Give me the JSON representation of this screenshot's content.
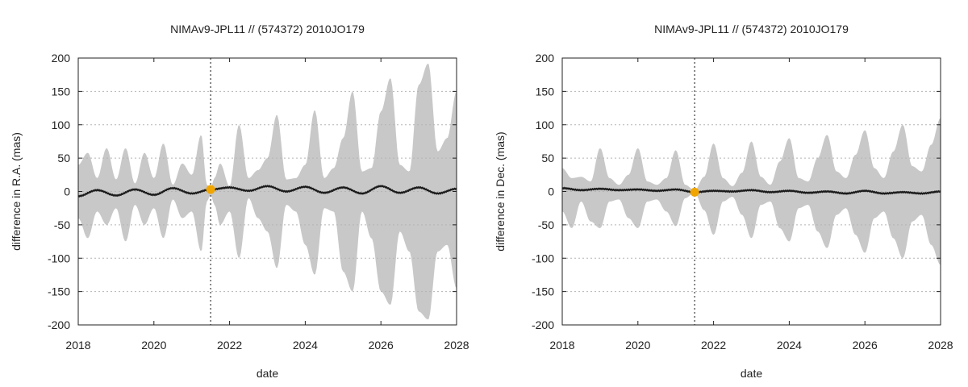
{
  "colors": {
    "band": "#c8c8c8",
    "line": "#1a1a1a",
    "marker": "#f0a500",
    "grid": "#b4b4b4",
    "epoch_line": "#555555"
  },
  "chart_data": [
    {
      "type": "line",
      "title": "NIMAv9-JPL11 // (574372) 2010JO179",
      "xlabel": "date",
      "ylabel": "difference in R.A. (mas)",
      "xlim": [
        2018,
        2028
      ],
      "ylim": [
        -200,
        200
      ],
      "xticks": [
        "2018",
        "2020",
        "2022",
        "2024",
        "2026",
        "2028"
      ],
      "yticks": [
        "200",
        "150",
        "100",
        "50",
        "0",
        "-50",
        "-100",
        "-150",
        "-200"
      ],
      "grid": "horizontal dotted",
      "epoch": 2021.5,
      "epoch_value": 3,
      "band_envelope": {
        "x": [
          2018.0,
          2018.25,
          2018.5,
          2018.75,
          2019.0,
          2019.25,
          2019.5,
          2019.75,
          2020.0,
          2020.25,
          2020.5,
          2020.75,
          2021.0,
          2021.25,
          2021.4,
          2021.5,
          2021.6,
          2021.75,
          2022.0,
          2022.25,
          2022.5,
          2022.75,
          2023.0,
          2023.25,
          2023.5,
          2023.75,
          2024.0,
          2024.25,
          2024.5,
          2024.75,
          2025.0,
          2025.25,
          2025.5,
          2025.75,
          2026.0,
          2026.25,
          2026.5,
          2026.75,
          2027.0,
          2027.25,
          2027.5,
          2027.75,
          2028.0
        ],
        "upper": [
          40,
          58,
          20,
          65,
          18,
          65,
          12,
          58,
          20,
          72,
          10,
          42,
          25,
          85,
          10,
          5,
          20,
          42,
          8,
          100,
          20,
          32,
          50,
          115,
          18,
          20,
          40,
          122,
          20,
          35,
          80,
          150,
          30,
          35,
          120,
          170,
          40,
          30,
          160,
          192,
          60,
          80,
          150
        ],
        "lower": [
          -40,
          -70,
          -30,
          -50,
          -25,
          -75,
          -20,
          -50,
          -25,
          -70,
          -12,
          -40,
          -30,
          -90,
          -15,
          -5,
          -20,
          -50,
          -30,
          -100,
          -10,
          -40,
          -60,
          -115,
          -20,
          -30,
          -80,
          -125,
          -25,
          -30,
          -120,
          -150,
          -30,
          -70,
          -150,
          -170,
          -60,
          -90,
          -180,
          -192,
          -90,
          -80,
          -145
        ]
      },
      "series": [
        {
          "x": [
            2018.0,
            2018.5,
            2019.0,
            2019.5,
            2020.0,
            2020.5,
            2021.0,
            2021.5,
            2022.0,
            2022.5,
            2023.0,
            2023.5,
            2024.0,
            2024.5,
            2025.0,
            2025.5,
            2026.0,
            2026.5,
            2027.0,
            2027.5,
            2028.0
          ],
          "values": [
            -7,
            2,
            -6,
            3,
            -5,
            5,
            -3,
            3,
            6,
            1,
            8,
            0,
            7,
            -2,
            6,
            -3,
            8,
            -2,
            6,
            -3,
            4
          ]
        }
      ]
    },
    {
      "type": "line",
      "title": "NIMAv9-JPL11 // (574372) 2010JO179",
      "xlabel": "date",
      "ylabel": "difference in Dec. (mas)",
      "xlim": [
        2018,
        2028
      ],
      "ylim": [
        -200,
        200
      ],
      "xticks": [
        "2018",
        "2020",
        "2022",
        "2024",
        "2026",
        "2028"
      ],
      "yticks": [
        "200",
        "150",
        "100",
        "50",
        "0",
        "-50",
        "-100",
        "-150",
        "-200"
      ],
      "grid": "horizontal dotted",
      "epoch": 2021.5,
      "epoch_value": -1,
      "band_envelope": {
        "x": [
          2018.0,
          2018.25,
          2018.5,
          2018.75,
          2019.0,
          2019.25,
          2019.5,
          2019.75,
          2020.0,
          2020.25,
          2020.5,
          2020.75,
          2021.0,
          2021.25,
          2021.5,
          2021.75,
          2022.0,
          2022.25,
          2022.5,
          2022.75,
          2023.0,
          2023.25,
          2023.5,
          2023.75,
          2024.0,
          2024.25,
          2024.5,
          2024.75,
          2025.0,
          2025.25,
          2025.5,
          2025.75,
          2026.0,
          2026.25,
          2026.5,
          2026.75,
          2027.0,
          2027.25,
          2027.5,
          2027.75,
          2028.0
        ],
        "upper": [
          35,
          20,
          22,
          15,
          65,
          20,
          10,
          25,
          65,
          15,
          10,
          20,
          62,
          10,
          2,
          22,
          72,
          20,
          8,
          28,
          75,
          22,
          10,
          45,
          80,
          20,
          15,
          50,
          85,
          30,
          20,
          55,
          92,
          35,
          20,
          60,
          100,
          38,
          30,
          70,
          110
        ],
        "lower": [
          -30,
          -55,
          -15,
          -45,
          -55,
          -15,
          -12,
          -40,
          -55,
          -15,
          -12,
          -30,
          -52,
          -10,
          -2,
          -28,
          -65,
          -15,
          -8,
          -35,
          -70,
          -20,
          -15,
          -55,
          -75,
          -25,
          -20,
          -60,
          -85,
          -35,
          -25,
          -65,
          -92,
          -40,
          -30,
          -70,
          -100,
          -45,
          -35,
          -80,
          -110
        ]
      },
      "series": [
        {
          "x": [
            2018.0,
            2018.5,
            2019.0,
            2019.5,
            2020.0,
            2020.5,
            2021.0,
            2021.5,
            2022.0,
            2022.5,
            2023.0,
            2023.5,
            2024.0,
            2024.5,
            2025.0,
            2025.5,
            2026.0,
            2026.5,
            2027.0,
            2027.5,
            2028.0
          ],
          "values": [
            5,
            2,
            4,
            2,
            3,
            1,
            3,
            -1,
            1,
            0,
            2,
            -1,
            1,
            -2,
            0,
            -3,
            1,
            -3,
            -1,
            -3,
            0
          ]
        }
      ]
    }
  ]
}
